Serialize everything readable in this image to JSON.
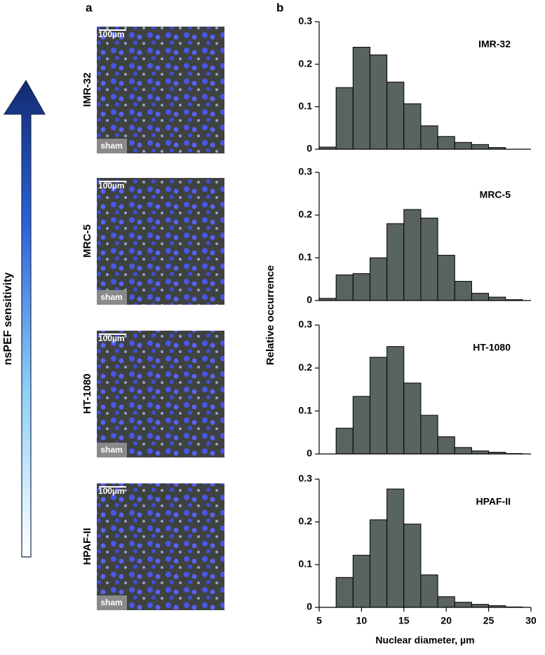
{
  "panel_labels": [
    "a",
    "b"
  ],
  "arrow_label": "nsPEF sensitivity",
  "y_label": "Relative occurrence",
  "images": [
    {
      "label": "IMR-32",
      "scale_bar": "100µm",
      "condition": "sham"
    },
    {
      "label": "MRC-5",
      "scale_bar": "100µm",
      "condition": "sham"
    },
    {
      "label": "HT-1080",
      "scale_bar": "100µm",
      "condition": "sham"
    },
    {
      "label": "HPAF-II",
      "scale_bar": "100µm",
      "condition": "sham"
    }
  ],
  "chart_data": [
    {
      "type": "histogram",
      "title": "IMR-32",
      "color": "#59635f",
      "bins": [
        5,
        7,
        9,
        11,
        13,
        15,
        17,
        19,
        21,
        23,
        25,
        27,
        29
      ],
      "values": [
        0.005,
        0.145,
        0.24,
        0.222,
        0.158,
        0.107,
        0.055,
        0.03,
        0.016,
        0.011,
        0.004,
        0.0
      ],
      "xlim": [
        5,
        30
      ],
      "ylim": [
        0,
        0.3
      ],
      "yticks": [
        0,
        0.1,
        0.2,
        0.3
      ]
    },
    {
      "type": "histogram",
      "title": "MRC-5",
      "color": "#59635f",
      "bins": [
        5,
        7,
        9,
        11,
        13,
        15,
        17,
        19,
        21,
        23,
        25,
        27,
        29
      ],
      "values": [
        0.005,
        0.06,
        0.063,
        0.1,
        0.18,
        0.213,
        0.193,
        0.106,
        0.045,
        0.017,
        0.008,
        0.002
      ],
      "xlim": [
        5,
        30
      ],
      "ylim": [
        0,
        0.3
      ],
      "yticks": [
        0,
        0.1,
        0.2,
        0.3
      ]
    },
    {
      "type": "histogram",
      "title": "HT-1080",
      "color": "#59635f",
      "bins": [
        5,
        7,
        9,
        11,
        13,
        15,
        17,
        19,
        21,
        23,
        25,
        27,
        29
      ],
      "values": [
        0.0,
        0.06,
        0.134,
        0.225,
        0.25,
        0.165,
        0.09,
        0.04,
        0.015,
        0.007,
        0.004,
        0.001
      ],
      "xlim": [
        5,
        30
      ],
      "ylim": [
        0,
        0.3
      ],
      "yticks": [
        0,
        0.1,
        0.2,
        0.3
      ]
    },
    {
      "type": "histogram",
      "title": "HPAF-II",
      "color": "#59635f",
      "bins": [
        5,
        7,
        9,
        11,
        13,
        15,
        17,
        19,
        21,
        23,
        25,
        27,
        29
      ],
      "values": [
        0.0,
        0.07,
        0.122,
        0.205,
        0.277,
        0.195,
        0.076,
        0.025,
        0.012,
        0.007,
        0.004,
        0.001
      ],
      "xlim": [
        5,
        30
      ],
      "ylim": [
        0,
        0.3
      ],
      "yticks": [
        0,
        0.1,
        0.2,
        0.3
      ],
      "xticks": [
        5,
        10,
        15,
        20,
        25,
        30
      ],
      "xlabel": "Nuclear diameter, µm"
    }
  ]
}
